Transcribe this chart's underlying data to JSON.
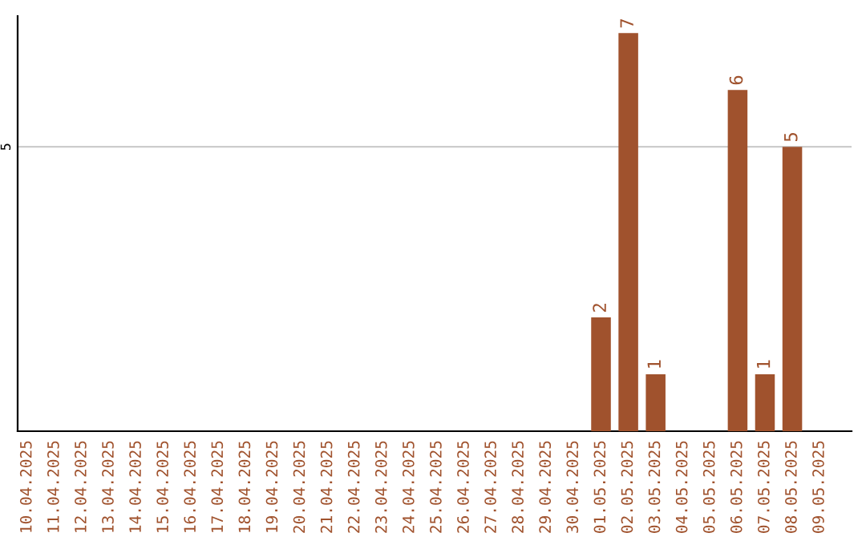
{
  "chart_data": {
    "type": "bar",
    "categories": [
      "10.04.2025",
      "11.04.2025",
      "12.04.2025",
      "13.04.2025",
      "14.04.2025",
      "15.04.2025",
      "16.04.2025",
      "17.04.2025",
      "18.04.2025",
      "19.04.2025",
      "20.04.2025",
      "21.04.2025",
      "22.04.2025",
      "23.04.2025",
      "24.04.2025",
      "25.04.2025",
      "26.04.2025",
      "27.04.2025",
      "28.04.2025",
      "29.04.2025",
      "30.04.2025",
      "01.05.2025",
      "02.05.2025",
      "03.05.2025",
      "04.05.2025",
      "05.05.2025",
      "06.05.2025",
      "07.05.2025",
      "08.05.2025",
      "09.05.2025"
    ],
    "values": [
      null,
      null,
      null,
      null,
      null,
      null,
      null,
      null,
      null,
      null,
      null,
      null,
      null,
      null,
      null,
      null,
      null,
      null,
      null,
      null,
      null,
      2,
      7,
      1,
      null,
      null,
      6,
      1,
      5,
      null
    ],
    "data_labels": true,
    "color": "#a0522d",
    "ylim": [
      0,
      7.3
    ],
    "yticks": [
      5
    ],
    "grid": "y"
  }
}
